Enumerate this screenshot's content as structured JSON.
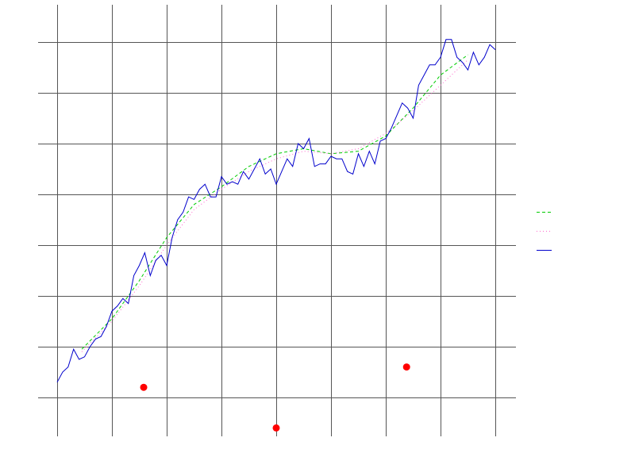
{
  "chart_data": {
    "type": "line",
    "title": "",
    "xlabel": "",
    "ylabel": "",
    "grid": true,
    "legend_placement": "right",
    "xlim": [
      0,
      8
    ],
    "ylim": [
      0,
      8
    ],
    "xticks": [
      0,
      1,
      2,
      3,
      4,
      5,
      6,
      7,
      8
    ],
    "yticks": [
      0.8,
      1.8,
      2.8,
      3.8,
      4.8,
      5.8,
      6.8,
      7.8
    ],
    "series": [
      {
        "name": "",
        "type": "line",
        "color": "#00cc00",
        "dash": "dashed",
        "x": [
          0.45,
          1,
          1.5,
          2,
          2.5,
          3,
          3.5,
          4,
          4.5,
          5,
          5.5,
          6,
          6.5,
          7,
          7.5
        ],
        "y": [
          1.75,
          2.35,
          3.1,
          3.95,
          4.6,
          4.95,
          5.35,
          5.6,
          5.7,
          5.6,
          5.65,
          5.95,
          6.5,
          7.15,
          7.55
        ]
      },
      {
        "name": "",
        "type": "line",
        "color": "#ff66cc",
        "dash": "dotted",
        "x": [
          0.45,
          1,
          1.5,
          2,
          2.5,
          3,
          3.5,
          4,
          4.5,
          5,
          5.5,
          6,
          6.5,
          7,
          7.5
        ],
        "y": [
          1.7,
          2.3,
          3.0,
          3.8,
          4.5,
          4.9,
          5.25,
          5.5,
          5.65,
          5.6,
          5.7,
          6.0,
          6.45,
          6.95,
          7.45
        ]
      },
      {
        "name": "",
        "type": "line",
        "color": "#0000cc",
        "dash": "solid",
        "x": [
          0.0,
          0.1,
          0.2,
          0.3,
          0.4,
          0.5,
          0.6,
          0.7,
          0.8,
          0.9,
          1.0,
          1.1,
          1.2,
          1.3,
          1.4,
          1.5,
          1.6,
          1.7,
          1.8,
          1.9,
          2.0,
          2.1,
          2.2,
          2.3,
          2.4,
          2.5,
          2.6,
          2.7,
          2.8,
          2.9,
          3.0,
          3.1,
          3.2,
          3.3,
          3.4,
          3.5,
          3.6,
          3.7,
          3.8,
          3.9,
          4.0,
          4.1,
          4.2,
          4.3,
          4.4,
          4.5,
          4.6,
          4.7,
          4.8,
          4.9,
          5.0,
          5.1,
          5.2,
          5.3,
          5.4,
          5.5,
          5.6,
          5.7,
          5.8,
          5.9,
          6.0,
          6.1,
          6.2,
          6.3,
          6.4,
          6.5,
          6.6,
          6.7,
          6.8,
          6.9,
          7.0,
          7.1,
          7.2,
          7.3,
          7.4,
          7.5,
          7.6,
          7.7,
          7.8,
          7.9,
          8.0
        ],
        "y": [
          1.1,
          1.3,
          1.4,
          1.75,
          1.55,
          1.6,
          1.8,
          1.95,
          2.0,
          2.2,
          2.5,
          2.6,
          2.75,
          2.65,
          3.2,
          3.4,
          3.65,
          3.2,
          3.5,
          3.6,
          3.4,
          3.95,
          4.3,
          4.45,
          4.75,
          4.7,
          4.9,
          5.0,
          4.75,
          4.75,
          5.15,
          5.0,
          5.05,
          5.0,
          5.25,
          5.1,
          5.3,
          5.5,
          5.2,
          5.3,
          5.0,
          5.25,
          5.5,
          5.35,
          5.8,
          5.7,
          5.9,
          5.35,
          5.4,
          5.4,
          5.55,
          5.5,
          5.5,
          5.25,
          5.2,
          5.6,
          5.35,
          5.65,
          5.4,
          5.85,
          5.9,
          6.1,
          6.35,
          6.6,
          6.5,
          6.3,
          6.95,
          7.15,
          7.35,
          7.35,
          7.5,
          7.85,
          7.85,
          7.5,
          7.4,
          7.25,
          7.6,
          7.35,
          7.5,
          7.75,
          7.65
        ]
      },
      {
        "name": "",
        "type": "scatter",
        "color": "#ff0000",
        "x": [
          1.58,
          4.0,
          6.38
        ],
        "y": [
          1.0,
          0.2,
          1.4
        ]
      }
    ]
  }
}
